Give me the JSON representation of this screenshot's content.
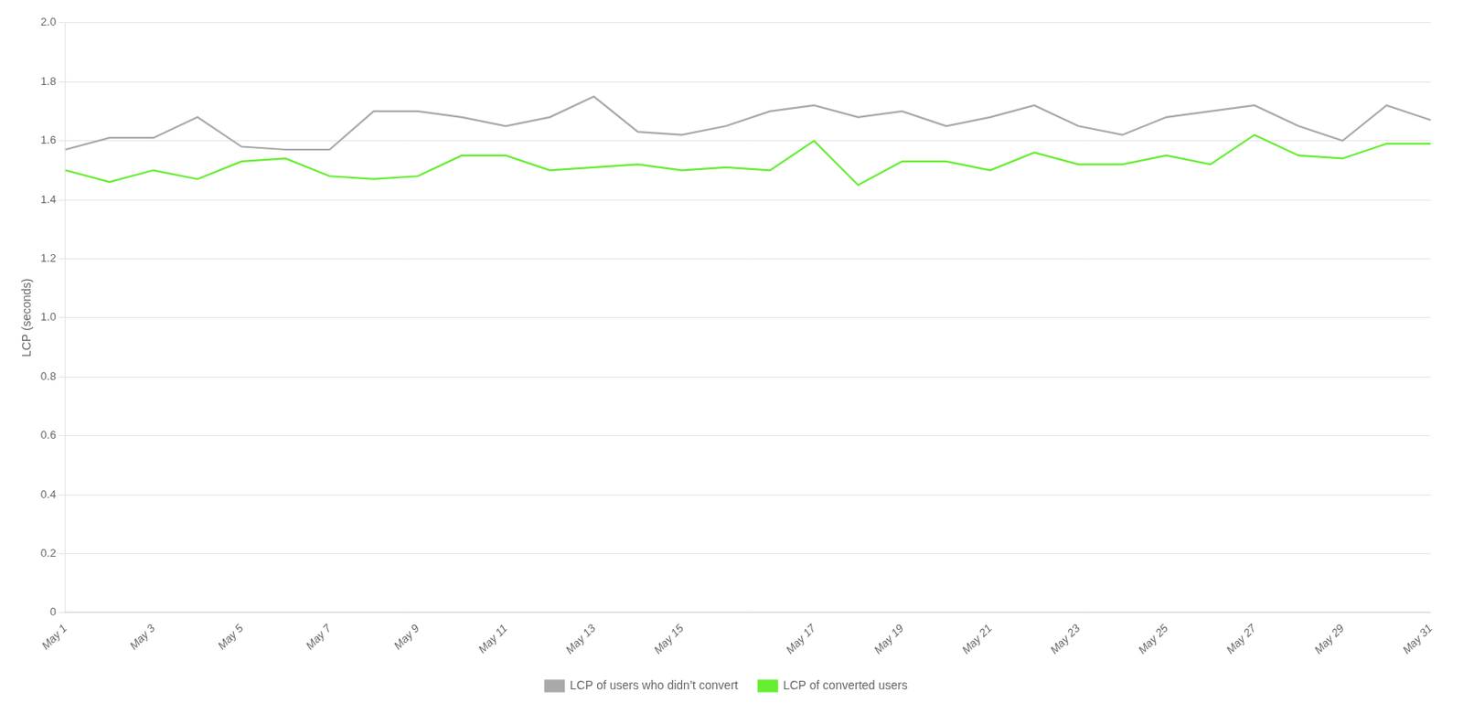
{
  "chart_data": {
    "type": "line",
    "categories": [
      "May 1",
      null,
      "May 3",
      null,
      "May 5",
      null,
      "May 7",
      null,
      "May 9",
      null,
      "May 11",
      null,
      "May 13",
      null,
      "May 15",
      null,
      null,
      "May 17",
      null,
      "May 19",
      null,
      "May 21",
      null,
      "May 23",
      null,
      "May 25",
      null,
      "May 27",
      null,
      "May 29",
      null,
      "May 31"
    ],
    "series": [
      {
        "name": "LCP of users who didn’t convert",
        "color": "#aaaaaa",
        "values": [
          1.57,
          1.61,
          1.61,
          1.68,
          1.58,
          1.57,
          1.57,
          1.7,
          1.7,
          1.68,
          1.65,
          1.68,
          1.75,
          1.63,
          1.62,
          1.65,
          1.7,
          1.72,
          1.68,
          1.7,
          1.65,
          1.68,
          1.72,
          1.65,
          1.62,
          1.68,
          1.7,
          1.72,
          1.65,
          1.6,
          1.72,
          1.67
        ]
      },
      {
        "name": "LCP of converted users",
        "color": "#66ee33",
        "values": [
          1.5,
          1.46,
          1.5,
          1.47,
          1.53,
          1.54,
          1.48,
          1.47,
          1.48,
          1.55,
          1.55,
          1.5,
          1.51,
          1.52,
          1.5,
          1.51,
          1.5,
          1.6,
          1.45,
          1.53,
          1.53,
          1.5,
          1.56,
          1.52,
          1.52,
          1.55,
          1.52,
          1.62,
          1.55,
          1.54,
          1.59,
          1.59
        ]
      }
    ],
    "y_label": "LCP (seconds)",
    "ylim": [
      0,
      2.0
    ],
    "yticks": [
      0,
      0.2,
      0.4,
      0.6,
      0.8,
      {
        "value": 1.0,
        "label": "1.0"
      },
      1.2,
      1.4,
      1.6,
      1.8,
      {
        "value": 2.0,
        "label": "2.0"
      }
    ],
    "grid": "y",
    "legend": "bottom"
  }
}
